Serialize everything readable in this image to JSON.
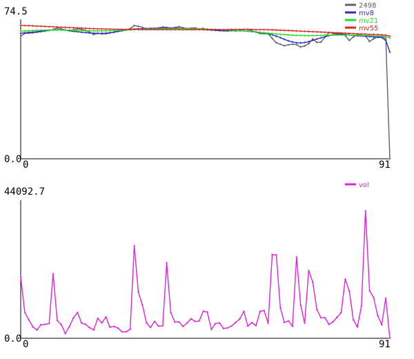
{
  "chart_data": [
    {
      "type": "line",
      "ylim": [
        0.0,
        74.5
      ],
      "xlim": [
        0,
        91
      ],
      "y_tick_labels": [
        "74.5",
        "0.0"
      ],
      "x_tick_labels": [
        "0",
        "91"
      ],
      "legend_position": "top-right",
      "series": [
        {
          "name": "2498",
          "color": "#606060",
          "values": [
            65.5,
            67.0,
            67.1,
            67.3,
            67.6,
            67.9,
            68.2,
            68.6,
            69.0,
            70.0,
            69.4,
            68.8,
            68.4,
            68.9,
            69.5,
            69.2,
            68.6,
            67.6,
            66.4,
            67.0,
            66.7,
            66.8,
            67.2,
            67.7,
            68.3,
            68.6,
            69.0,
            69.5,
            71.2,
            70.8,
            70.2,
            69.4,
            69.5,
            69.2,
            69.9,
            70.4,
            70.2,
            69.8,
            70.1,
            70.6,
            70.0,
            69.6,
            69.8,
            69.9,
            69.4,
            69.7,
            69.0,
            68.8,
            68.6,
            68.4,
            68.3,
            68.2,
            68.5,
            68.3,
            68.6,
            69.2,
            69.1,
            68.4,
            67.6,
            66.9,
            66.8,
            66.9,
            64.3,
            62.0,
            61.2,
            60.4,
            60.9,
            61.2,
            61.0,
            59.7,
            60.3,
            61.5,
            64.0,
            62.2,
            62.3,
            65.0,
            67.5,
            67.0,
            66.8,
            67.1,
            65.8,
            63.2,
            65.1,
            66.3,
            66.0,
            65.6,
            62.7,
            64.1,
            65.2,
            65.5,
            64.2,
            0.0
          ]
        },
        {
          "name": "mv8",
          "color": "#2b2bcc",
          "values": [
            67.0,
            67.3,
            67.5,
            67.7,
            67.9,
            68.2,
            68.5,
            68.7,
            68.9,
            69.0,
            68.9,
            68.7,
            68.4,
            68.1,
            67.9,
            67.6,
            67.4,
            67.2,
            67.1,
            67.0,
            67.0,
            67.1,
            67.3,
            67.6,
            68.0,
            68.4,
            68.8,
            69.1,
            69.3,
            69.4,
            69.5,
            69.6,
            69.7,
            69.7,
            69.8,
            69.8,
            69.8,
            69.8,
            69.8,
            69.7,
            69.6,
            69.5,
            69.4,
            69.3,
            69.2,
            69.0,
            68.9,
            68.8,
            68.7,
            68.6,
            68.5,
            68.5,
            68.5,
            68.4,
            68.4,
            68.3,
            68.2,
            68.0,
            67.8,
            67.5,
            67.2,
            66.8,
            66.2,
            65.5,
            64.7,
            63.8,
            63.0,
            62.4,
            62.0,
            61.9,
            62.1,
            62.6,
            63.3,
            64.0,
            64.6,
            65.2,
            65.8,
            66.2,
            66.4,
            66.5,
            66.4,
            66.2,
            65.9,
            65.7,
            65.6,
            65.5,
            65.3,
            65.1,
            64.9,
            64.8,
            63.2,
            57.0
          ]
        },
        {
          "name": "mv21",
          "color": "#22dd22",
          "values": [
            68.2,
            68.3,
            68.4,
            68.5,
            68.6,
            68.7,
            68.7,
            68.8,
            68.8,
            68.8,
            68.8,
            68.7,
            68.7,
            68.6,
            68.5,
            68.5,
            68.4,
            68.4,
            68.3,
            68.3,
            68.3,
            68.4,
            68.4,
            68.5,
            68.6,
            68.7,
            68.8,
            68.9,
            69.0,
            69.1,
            69.2,
            69.3,
            69.3,
            69.4,
            69.4,
            69.5,
            69.5,
            69.5,
            69.5,
            69.5,
            69.5,
            69.5,
            69.5,
            69.4,
            69.4,
            69.3,
            69.3,
            69.2,
            69.1,
            69.0,
            68.9,
            68.8,
            68.7,
            68.6,
            68.5,
            68.3,
            68.1,
            67.9,
            67.7,
            67.5,
            67.3,
            67.1,
            66.9,
            66.7,
            66.5,
            66.3,
            66.2,
            66.0,
            65.9,
            65.9,
            65.8,
            65.8,
            65.8,
            65.9,
            65.9,
            66.0,
            66.0,
            66.1,
            66.1,
            66.1,
            66.1,
            66.1,
            66.0,
            66.0,
            65.9,
            65.9,
            65.8,
            65.7,
            65.6,
            65.5,
            65.3,
            64.5
          ]
        },
        {
          "name": "mv55",
          "color": "#dd2222",
          "values": [
            71.3,
            71.2,
            71.1,
            71.0,
            70.9,
            70.8,
            70.7,
            70.6,
            70.5,
            70.4,
            70.3,
            70.2,
            70.1,
            70.0,
            69.9,
            69.8,
            69.7,
            69.6,
            69.5,
            69.4,
            69.4,
            69.3,
            69.3,
            69.2,
            69.2,
            69.2,
            69.1,
            69.1,
            69.1,
            69.1,
            69.0,
            69.0,
            69.0,
            69.0,
            69.0,
            69.0,
            69.0,
            69.0,
            69.0,
            69.0,
            69.0,
            69.0,
            69.0,
            69.0,
            69.0,
            69.0,
            69.0,
            69.0,
            69.0,
            69.0,
            69.0,
            69.0,
            69.1,
            69.1,
            69.1,
            69.1,
            69.1,
            69.1,
            69.0,
            69.0,
            69.0,
            68.9,
            68.9,
            68.8,
            68.7,
            68.6,
            68.5,
            68.4,
            68.3,
            68.2,
            68.1,
            68.0,
            67.9,
            67.8,
            67.7,
            67.6,
            67.5,
            67.4,
            67.3,
            67.2,
            67.1,
            67.0,
            66.9,
            66.8,
            66.7,
            66.6,
            66.5,
            66.4,
            66.3,
            66.2,
            66.0,
            65.5
          ]
        }
      ]
    },
    {
      "type": "line",
      "ylim": [
        0.0,
        44092.7
      ],
      "xlim": [
        0,
        91
      ],
      "y_tick_labels": [
        "44092.7",
        "0.0"
      ],
      "x_tick_labels": [
        "0",
        "91"
      ],
      "legend_position": "top-right",
      "series": [
        {
          "name": "vol",
          "color": "#dd22dd",
          "values": [
            19620,
            8270,
            5880,
            3670,
            2670,
            4360,
            4440,
            4760,
            20620,
            5700,
            4360,
            1520,
            3730,
            6520,
            8210,
            4890,
            4440,
            3370,
            2670,
            6360,
            4930,
            6770,
            3570,
            3770,
            3250,
            2060,
            2060,
            2930,
            29550,
            14730,
            10660,
            4920,
            3470,
            5400,
            3850,
            4000,
            24100,
            8210,
            5210,
            5240,
            3790,
            4840,
            6230,
            5360,
            5530,
            8630,
            8360,
            2860,
            4700,
            4880,
            3110,
            3310,
            3970,
            5070,
            6190,
            8590,
            3900,
            5000,
            4040,
            8590,
            8880,
            4840,
            26730,
            26610,
            9710,
            5050,
            5560,
            3870,
            25990,
            10580,
            4850,
            21630,
            17900,
            9190,
            6590,
            6560,
            4440,
            5250,
            6730,
            8240,
            18880,
            15060,
            5860,
            3620,
            10310,
            40710,
            15240,
            13010,
            7280,
            4340,
            12810,
            0
          ]
        }
      ]
    }
  ]
}
